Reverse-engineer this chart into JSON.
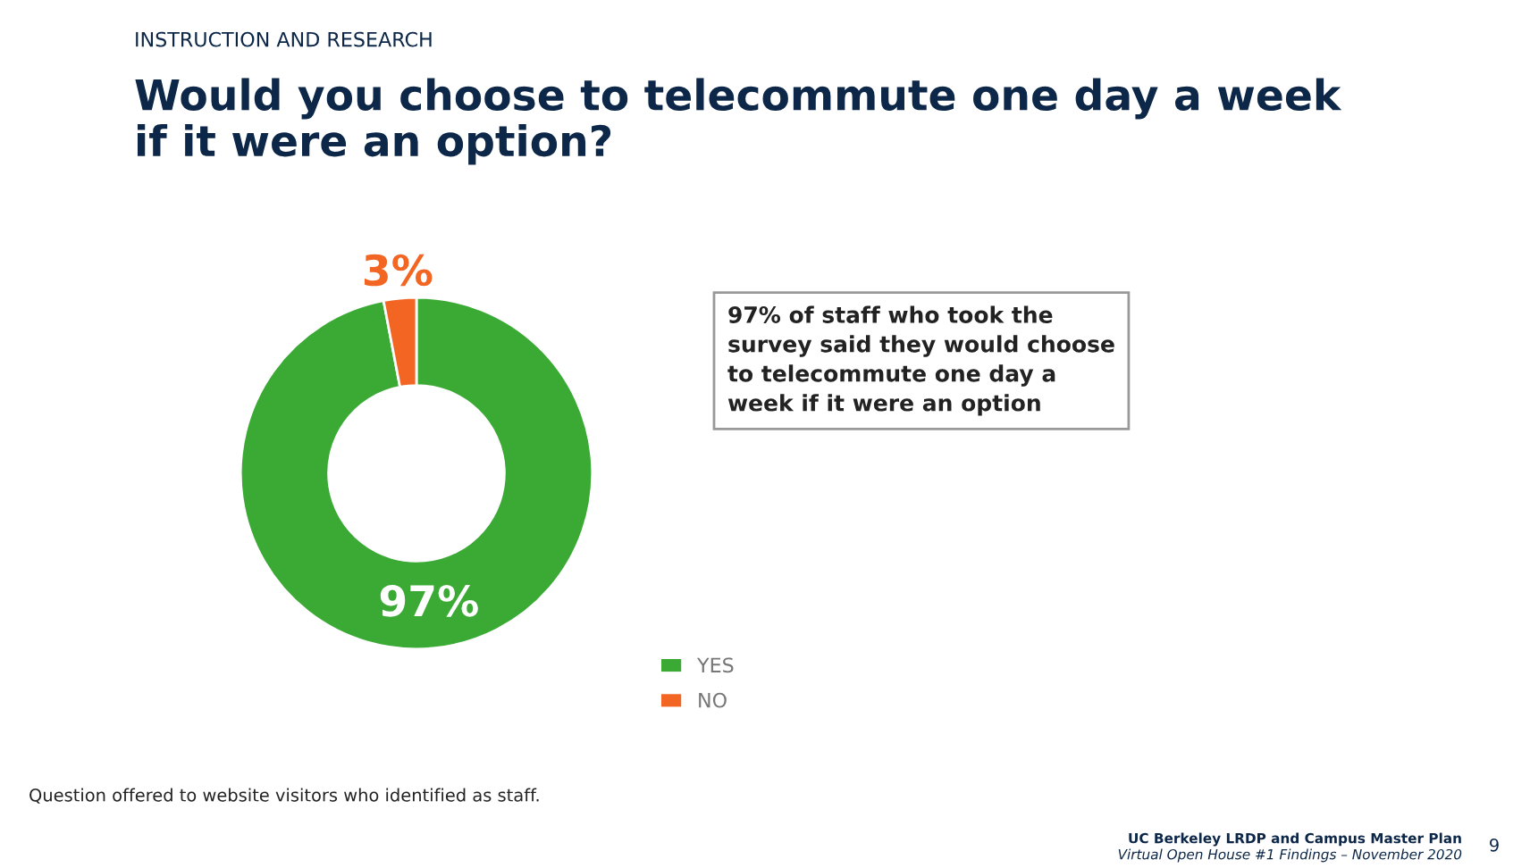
{
  "chart_data": {
    "type": "donut",
    "subtitle": "INSTRUCTION AND RESEARCH",
    "title": "Would you choose to telecommute one day a week\nif it were an option?",
    "categories": [
      "YES",
      "NO"
    ],
    "values": [
      97,
      3
    ],
    "colors": [
      "#3aaa35",
      "#f26522"
    ],
    "value_labels": [
      "97%",
      "3%"
    ],
    "legend": "bottom right",
    "annotations": [
      "97% of staff who took the\nsurvey said they would choose\nto telecommute one day a\nweek if it were an option",
      "Question offered to website visitors who identified as staff.",
      "UC Berkeley LRDP and Campus Master Plan",
      "Virtual Open House #1 Findings – November 2020",
      "9"
    ]
  }
}
